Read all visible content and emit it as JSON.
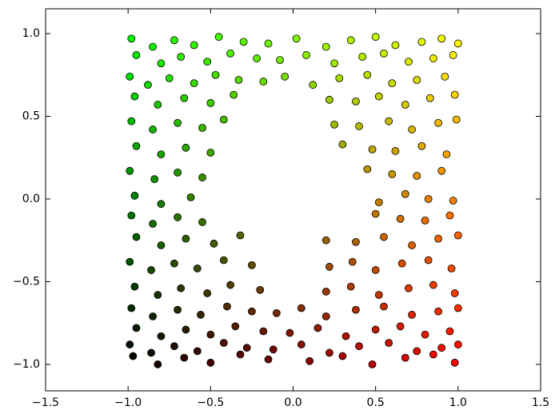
{
  "chart_data": {
    "type": "scatter",
    "x": [
      -0.98,
      -0.85,
      -0.72,
      -0.6,
      -0.45,
      -0.3,
      -0.15,
      0.02,
      0.2,
      0.35,
      0.5,
      0.62,
      0.78,
      0.9,
      1.0,
      -0.95,
      -0.8,
      -0.68,
      -0.52,
      -0.38,
      -0.22,
      -0.08,
      0.08,
      0.25,
      0.42,
      0.55,
      0.7,
      0.85,
      0.97,
      -0.99,
      -0.88,
      -0.75,
      -0.6,
      -0.47,
      -0.33,
      -0.18,
      -0.05,
      0.12,
      0.28,
      0.45,
      0.6,
      0.75,
      0.92,
      -0.96,
      -0.82,
      -0.66,
      -0.5,
      -0.36,
      0.22,
      0.38,
      0.52,
      0.68,
      0.83,
      0.98,
      -0.98,
      -0.85,
      -0.7,
      -0.55,
      -0.42,
      0.25,
      0.4,
      0.58,
      0.72,
      0.88,
      0.99,
      -0.95,
      -0.8,
      -0.65,
      -0.5,
      0.3,
      0.48,
      0.62,
      0.78,
      0.93,
      -0.99,
      -0.84,
      -0.7,
      -0.55,
      0.45,
      0.6,
      0.75,
      0.9,
      -0.96,
      -0.8,
      -0.62,
      0.52,
      0.68,
      0.82,
      0.97,
      -0.98,
      -0.85,
      -0.7,
      -0.55,
      0.5,
      0.65,
      0.8,
      0.95,
      -0.95,
      -0.8,
      -0.65,
      -0.48,
      -0.32,
      0.2,
      0.38,
      0.55,
      0.72,
      0.88,
      1.0,
      -0.99,
      -0.86,
      -0.72,
      -0.58,
      -0.42,
      -0.25,
      0.22,
      0.36,
      0.5,
      0.66,
      0.82,
      0.96,
      -0.96,
      -0.82,
      -0.68,
      -0.52,
      -0.38,
      -0.2,
      0.2,
      0.35,
      0.52,
      0.7,
      0.85,
      0.98,
      -0.98,
      -0.85,
      -0.7,
      -0.56,
      -0.4,
      -0.25,
      -0.1,
      0.05,
      0.2,
      0.38,
      0.55,
      0.72,
      0.88,
      1.0,
      -0.95,
      -0.8,
      -0.65,
      -0.5,
      -0.35,
      -0.18,
      -0.02,
      0.15,
      0.32,
      0.5,
      0.65,
      0.8,
      0.95,
      -0.99,
      -0.86,
      -0.72,
      -0.58,
      -0.42,
      -0.28,
      -0.12,
      0.05,
      0.22,
      0.4,
      0.58,
      0.75,
      0.9,
      1.0,
      -0.97,
      -0.82,
      -0.66,
      -0.5,
      -0.32,
      -0.15,
      0.1,
      0.3,
      0.48,
      0.68,
      0.85,
      0.98
    ],
    "y": [
      0.97,
      0.92,
      0.96,
      0.93,
      0.98,
      0.95,
      0.94,
      0.97,
      0.92,
      0.96,
      0.98,
      0.93,
      0.95,
      0.97,
      0.94,
      0.87,
      0.82,
      0.86,
      0.83,
      0.88,
      0.85,
      0.84,
      0.87,
      0.82,
      0.86,
      0.88,
      0.83,
      0.85,
      0.87,
      0.74,
      0.69,
      0.73,
      0.7,
      0.75,
      0.72,
      0.71,
      0.74,
      0.69,
      0.73,
      0.75,
      0.7,
      0.72,
      0.74,
      0.62,
      0.57,
      0.61,
      0.58,
      0.63,
      0.6,
      0.59,
      0.62,
      0.57,
      0.61,
      0.63,
      0.47,
      0.42,
      0.46,
      0.43,
      0.48,
      0.45,
      0.44,
      0.47,
      0.42,
      0.46,
      0.48,
      0.32,
      0.27,
      0.31,
      0.28,
      0.33,
      0.3,
      0.29,
      0.32,
      0.27,
      0.17,
      0.12,
      0.16,
      0.13,
      0.18,
      0.15,
      0.14,
      0.17,
      0.02,
      -0.03,
      0.01,
      -0.02,
      0.03,
      0,
      -0.01,
      -0.1,
      -0.15,
      -0.11,
      -0.14,
      -0.09,
      -0.12,
      -0.13,
      -0.1,
      -0.23,
      -0.28,
      -0.24,
      -0.27,
      -0.22,
      -0.25,
      -0.26,
      -0.23,
      -0.28,
      -0.24,
      -0.22,
      -0.38,
      -0.43,
      -0.39,
      -0.42,
      -0.37,
      -0.4,
      -0.41,
      -0.38,
      -0.43,
      -0.39,
      -0.37,
      -0.42,
      -0.53,
      -0.58,
      -0.54,
      -0.57,
      -0.52,
      -0.55,
      -0.56,
      -0.53,
      -0.58,
      -0.54,
      -0.52,
      -0.57,
      -0.66,
      -0.71,
      -0.67,
      -0.7,
      -0.65,
      -0.68,
      -0.69,
      -0.66,
      -0.71,
      -0.67,
      -0.65,
      -0.7,
      -0.68,
      -0.66,
      -0.78,
      -0.83,
      -0.79,
      -0.82,
      -0.77,
      -0.8,
      -0.81,
      -0.78,
      -0.83,
      -0.79,
      -0.77,
      -0.82,
      -0.8,
      -0.88,
      -0.93,
      -0.89,
      -0.92,
      -0.87,
      -0.9,
      -0.91,
      -0.88,
      -0.93,
      -0.89,
      -0.87,
      -0.92,
      -0.9,
      -0.88,
      -0.95,
      -1.0,
      -0.96,
      -0.99,
      -0.94,
      -0.97,
      -0.98,
      -0.95,
      -1.0,
      -0.96,
      -0.94,
      -0.99
    ],
    "point_colors": {
      "red": "x",
      "green": "y"
    },
    "edge_color": "#000000",
    "xlim": [
      -1.5,
      1.5
    ],
    "ylim": [
      -1.16,
      1.15
    ],
    "xticks": [
      {
        "value": -1.5,
        "label": "−1.5"
      },
      {
        "value": -1.0,
        "label": "−1.0"
      },
      {
        "value": -0.5,
        "label": "−0.5"
      },
      {
        "value": 0,
        "label": "0.0"
      },
      0.5,
      {
        "value": 1,
        "label": "1.0"
      },
      1.5
    ],
    "yticks": [
      {
        "value": -1.0,
        "label": "−1.0"
      },
      {
        "value": -0.5,
        "label": "−0.5"
      },
      {
        "value": 0,
        "label": "0.0"
      },
      0.5,
      {
        "value": 1,
        "label": "1.0"
      }
    ],
    "grid": false
  }
}
